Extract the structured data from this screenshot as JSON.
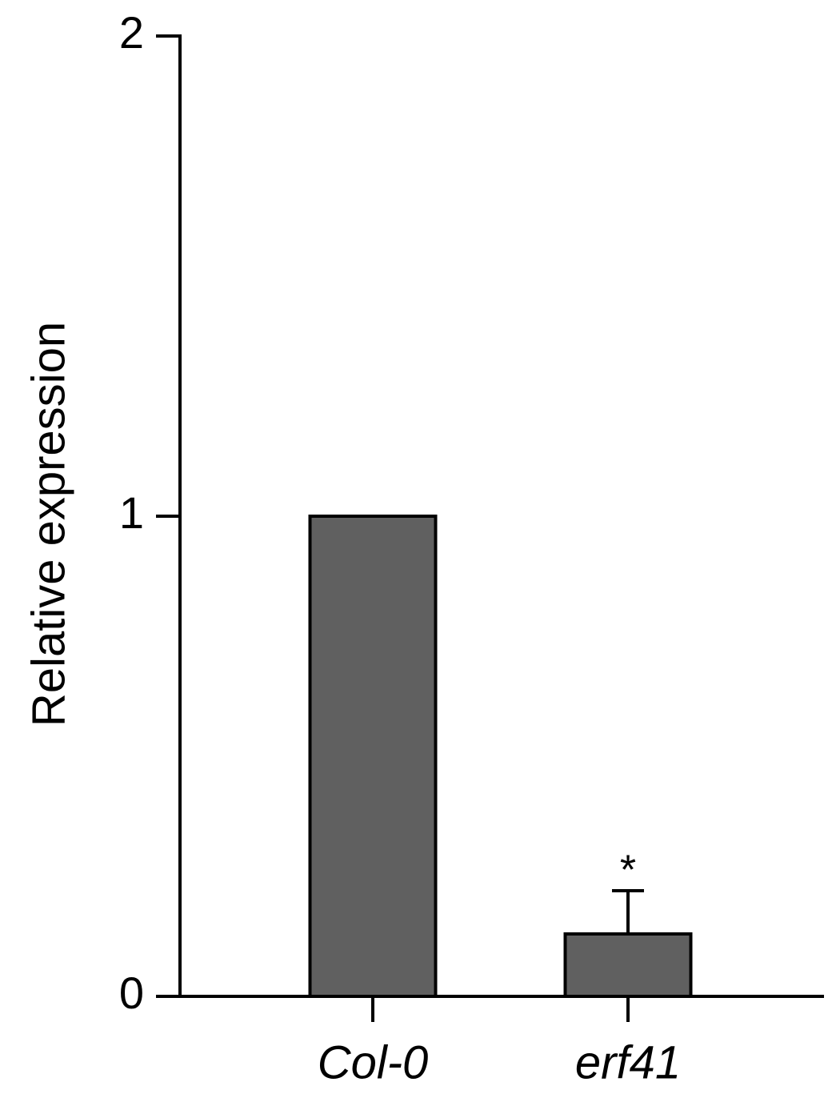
{
  "chart_data": {
    "type": "bar",
    "y_label": "Relative expression",
    "categories": [
      "Col-0",
      "erf41"
    ],
    "values": [
      1.0,
      0.13
    ],
    "errors": [
      null,
      0.09
    ],
    "annotation": "*",
    "color": "#606060",
    "ylim": [
      0,
      2
    ],
    "yticks": [
      0,
      1,
      2
    ]
  }
}
